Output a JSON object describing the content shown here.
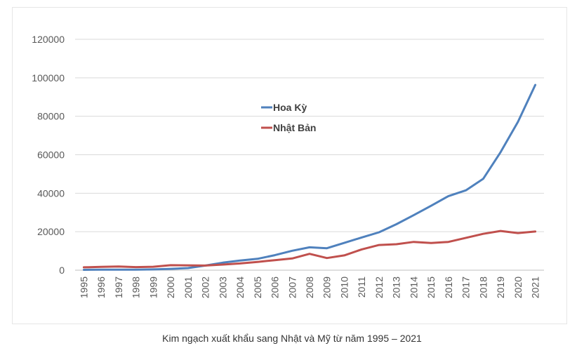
{
  "chart_data": {
    "type": "line",
    "title": "",
    "xlabel": "",
    "ylabel": "",
    "ylim": [
      0,
      120000
    ],
    "yticks": [
      0,
      20000,
      40000,
      60000,
      80000,
      100000,
      120000
    ],
    "ytick_labels": [
      "0",
      "20000",
      "40000",
      "60000",
      "80000",
      "100000",
      "120000"
    ],
    "grid": true,
    "legend_position": "center",
    "categories": [
      "1995",
      "1996",
      "1997",
      "1998",
      "1999",
      "2000",
      "2001",
      "2002",
      "2003",
      "2004",
      "2005",
      "2006",
      "2007",
      "2008",
      "2009",
      "2010",
      "2011",
      "2012",
      "2013",
      "2014",
      "2015",
      "2016",
      "2017",
      "2018",
      "2019",
      "2020",
      "2021"
    ],
    "series": [
      {
        "name": "Hoa Kỳ",
        "color": "#4f81bd",
        "values": [
          200,
          300,
          300,
          300,
          400,
          700,
          1100,
          2400,
          3900,
          5000,
          5900,
          7800,
          10100,
          11900,
          11400,
          14200,
          17000,
          19700,
          23900,
          28600,
          33500,
          38500,
          41500,
          47500,
          61300,
          77100,
          96300
        ]
      },
      {
        "name": "Nhật Bản",
        "color": "#c0504d",
        "values": [
          1500,
          1700,
          1900,
          1600,
          1800,
          2600,
          2500,
          2400,
          2900,
          3500,
          4300,
          5200,
          6100,
          8500,
          6300,
          7700,
          10800,
          13100,
          13500,
          14700,
          14100,
          14700,
          16800,
          18900,
          20400,
          19300,
          20100
        ]
      }
    ]
  },
  "caption": "Kim ngạch xuất khẩu sang Nhật và Mỹ từ năm 1995 – 2021"
}
